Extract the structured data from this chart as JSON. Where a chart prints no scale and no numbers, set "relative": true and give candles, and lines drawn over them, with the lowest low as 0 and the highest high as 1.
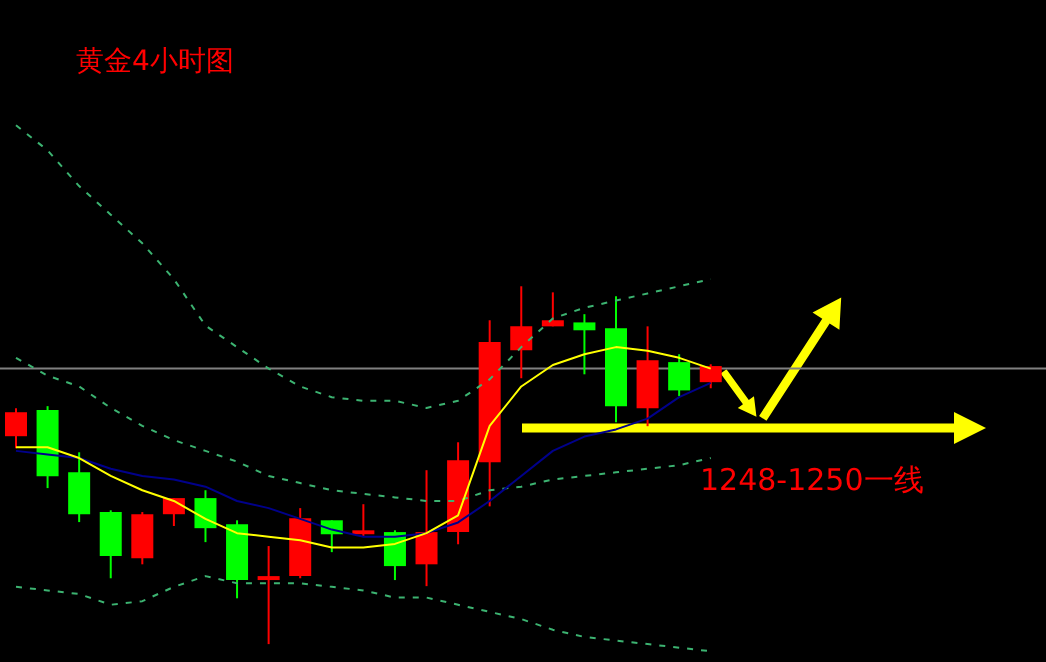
{
  "chart_data": {
    "type": "candlestick",
    "title": "黄金4小时图",
    "relative": true,
    "categories": [
      null,
      null,
      null,
      null,
      null,
      null,
      null,
      null,
      null,
      null,
      null,
      null,
      null,
      null,
      null,
      null,
      null,
      null,
      null,
      null,
      null,
      null,
      null
    ],
    "ohlc": [
      [
        0.581,
        0.659,
        0.547,
        0.648
      ],
      [
        0.654,
        0.665,
        0.436,
        0.469
      ],
      [
        0.48,
        0.536,
        0.341,
        0.363
      ],
      [
        0.369,
        0.374,
        0.184,
        0.246
      ],
      [
        0.24,
        0.369,
        0.223,
        0.363
      ],
      [
        0.363,
        0.408,
        0.33,
        0.408
      ],
      [
        0.408,
        0.43,
        0.285,
        0.324
      ],
      [
        0.335,
        0.346,
        0.128,
        0.179
      ],
      [
        0.179,
        0.274,
        0.0,
        0.19
      ],
      [
        0.19,
        0.38,
        0.184,
        0.352
      ],
      [
        0.346,
        0.346,
        0.257,
        0.307
      ],
      [
        0.307,
        0.391,
        0.302,
        0.318
      ],
      [
        0.313,
        0.318,
        0.179,
        0.218
      ],
      [
        0.223,
        0.486,
        0.162,
        0.313
      ],
      [
        0.313,
        0.564,
        0.279,
        0.514
      ],
      [
        0.508,
        0.905,
        0.385,
        0.844
      ],
      [
        0.821,
        1.0,
        0.743,
        0.888
      ],
      [
        0.888,
        0.983,
        0.888,
        0.905
      ],
      [
        0.899,
        0.922,
        0.754,
        0.877
      ],
      [
        0.883,
        0.972,
        0.62,
        0.665
      ],
      [
        0.659,
        0.888,
        0.609,
        0.793
      ],
      [
        0.788,
        0.81,
        0.693,
        0.709
      ],
      [
        0.732,
        0.782,
        0.715,
        0.777
      ]
    ],
    "colors": [
      "#ff0000",
      "#00ff00",
      "#00ff00",
      "#00ff00",
      "#ff0000",
      "#ff0000",
      "#00ff00",
      "#00ff00",
      "#ff0000",
      "#ff0000",
      "#00ff00",
      "#ff0000",
      "#00ff00",
      "#ff0000",
      "#ff0000",
      "#ff0000",
      "#ff0000",
      "#ff0000",
      "#00ff00",
      "#00ff00",
      "#ff0000",
      "#00ff00",
      "#ff0000"
    ],
    "series": [
      {
        "type": "line",
        "color": "#3cb371",
        "line_style": "dashed",
        "values": [
          1.45,
          1.38,
          1.28,
          1.2,
          1.12,
          1.02,
          0.89,
          0.83,
          0.77,
          0.72,
          0.69,
          0.68,
          0.68,
          0.66,
          0.68,
          0.74,
          0.83,
          0.91,
          0.94,
          0.96,
          0.98,
          1.0,
          1.02
        ]
      },
      {
        "type": "line",
        "color": "#3cb371",
        "line_style": "dashed",
        "values": [
          0.8,
          0.75,
          0.72,
          0.66,
          0.61,
          0.57,
          0.54,
          0.51,
          0.47,
          0.45,
          0.43,
          0.42,
          0.41,
          0.4,
          0.4,
          0.43,
          0.44,
          0.46,
          0.47,
          0.48,
          0.49,
          0.5,
          0.52
        ]
      },
      {
        "type": "line",
        "color": "#3cb371",
        "line_style": "dashed",
        "values": [
          0.16,
          0.15,
          0.14,
          0.11,
          0.12,
          0.16,
          0.19,
          0.17,
          0.17,
          0.17,
          0.16,
          0.15,
          0.13,
          0.13,
          0.11,
          0.09,
          0.07,
          0.04,
          0.02,
          0.01,
          0.0,
          -0.01,
          -0.02
        ]
      },
      {
        "type": "line",
        "color": "#00008b",
        "line_style": "solid",
        "values": [
          0.54,
          0.53,
          0.52,
          0.49,
          0.47,
          0.46,
          0.44,
          0.4,
          0.38,
          0.35,
          0.32,
          0.3,
          0.3,
          0.31,
          0.34,
          0.4,
          0.47,
          0.54,
          0.58,
          0.6,
          0.63,
          0.69,
          0.73
        ]
      },
      {
        "type": "line",
        "color": "#ffff00",
        "line_style": "solid",
        "values": [
          0.55,
          0.55,
          0.52,
          0.47,
          0.43,
          0.4,
          0.35,
          0.31,
          0.3,
          0.29,
          0.27,
          0.27,
          0.28,
          0.31,
          0.36,
          0.61,
          0.72,
          0.78,
          0.81,
          0.83,
          0.82,
          0.8,
          0.77
        ]
      }
    ],
    "ref_lines": [
      {
        "axis": "y",
        "value": 0.77,
        "color": "#808080"
      }
    ],
    "annotations": [
      "1248-1250一线"
    ]
  }
}
